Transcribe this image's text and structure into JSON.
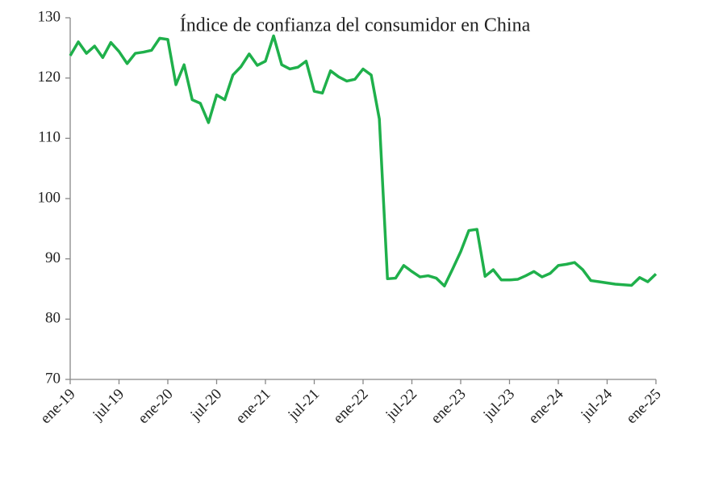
{
  "chart_data": {
    "type": "line",
    "title": "Índice de confianza del consumidor en China",
    "categories": [
      "ene-19",
      null,
      null,
      null,
      null,
      null,
      "jul-19",
      null,
      null,
      null,
      null,
      null,
      "ene-20",
      null,
      null,
      null,
      null,
      null,
      "jul-20",
      null,
      null,
      null,
      null,
      null,
      "ene-21",
      null,
      null,
      null,
      null,
      null,
      "jul-21",
      null,
      null,
      null,
      null,
      null,
      "ene-22",
      null,
      null,
      null,
      null,
      null,
      "jul-22",
      null,
      null,
      null,
      null,
      null,
      "ene-23",
      null,
      null,
      null,
      null,
      null,
      "jul-23",
      null,
      null,
      null,
      null,
      null,
      "ene-24",
      null,
      null,
      null,
      null,
      null,
      "jul-24",
      null,
      null,
      null,
      null,
      null,
      "ene-25"
    ],
    "series": [
      {
        "color": "#1fb04b",
        "values": [
          123.7,
          126.0,
          124.1,
          125.3,
          123.4,
          125.9,
          124.4,
          122.4,
          124.1,
          124.3,
          124.6,
          126.6,
          126.4,
          118.9,
          122.2,
          116.4,
          115.8,
          112.6,
          117.2,
          116.4,
          120.5,
          121.9,
          124.0,
          122.1,
          122.8,
          127.0,
          122.2,
          121.5,
          121.8,
          122.8,
          117.8,
          117.5,
          121.2,
          120.2,
          119.5,
          119.8,
          121.5,
          120.5,
          113.2,
          86.7,
          86.8,
          88.9,
          87.9,
          87.0,
          87.2,
          86.8,
          85.5,
          88.3,
          91.2,
          94.7,
          94.9,
          87.1,
          88.2,
          86.5,
          86.5,
          86.6,
          87.2,
          87.9,
          87.0,
          87.6,
          88.9,
          89.1,
          89.4,
          88.2,
          86.4,
          86.2,
          86.0,
          85.8,
          85.7,
          85.6,
          86.9,
          86.2,
          87.5
        ]
      }
    ],
    "ylim": [
      70,
      130
    ],
    "yticks": [
      70,
      80,
      90,
      100,
      110,
      120,
      130
    ]
  }
}
